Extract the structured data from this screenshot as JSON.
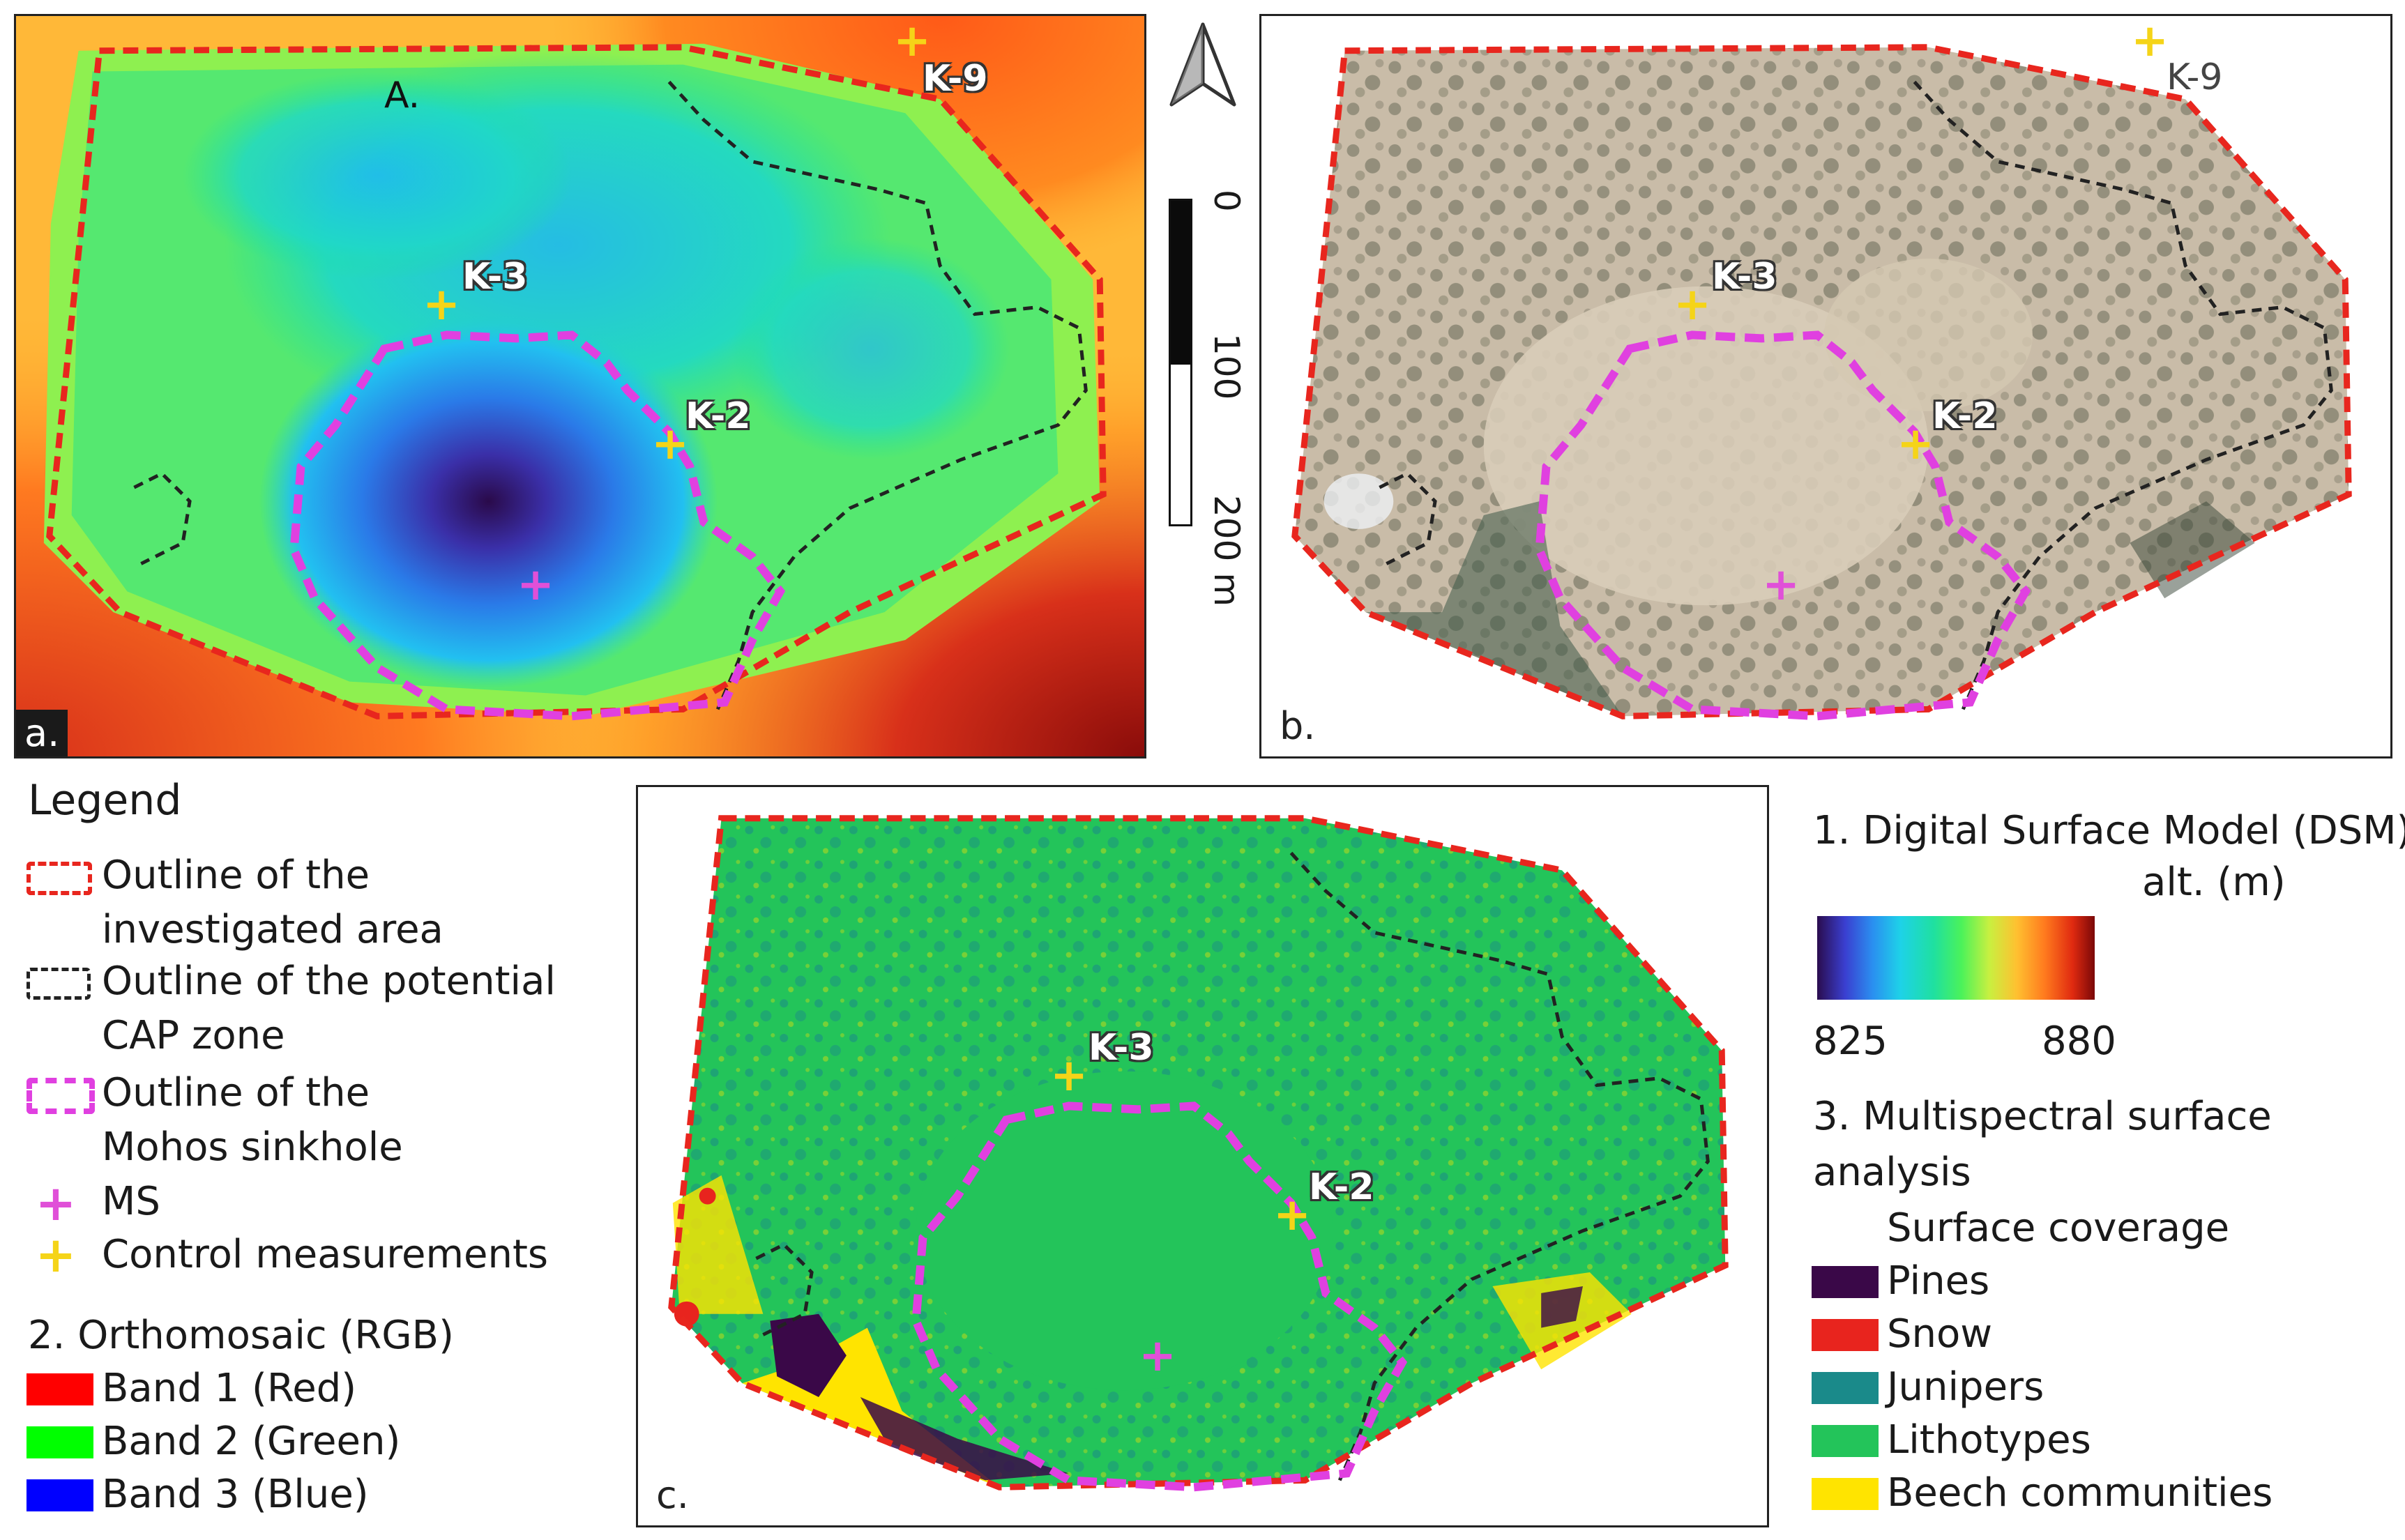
{
  "panels": {
    "a": {
      "corner": "a.",
      "title": "A."
    },
    "b": {
      "corner": "b."
    },
    "c": {
      "corner": "c."
    }
  },
  "points": {
    "k9": "K-9",
    "k3": "K-3",
    "k2": "K-2"
  },
  "scale": {
    "tick0": "0",
    "tick100": "100",
    "tick200": "200 m"
  },
  "legend": {
    "title": "Legend",
    "investigated_line1": "Outline of the",
    "investigated_line2": "investigated area",
    "cap_line1": "Outline of the potential",
    "cap_line2": "CAP zone",
    "mohos_line1": "Outline of the",
    "mohos_line2": "Mohos sinkhole",
    "ms": "MS",
    "control": "Control measurements",
    "ortho_title": "2. Orthomosaic (RGB)",
    "band1": "Band 1 (Red)",
    "band2": "Band 2 (Green)",
    "band3": "Band 3 (Blue)",
    "dsm_title": "1. Digital Surface Model (DSM)",
    "dsm_unit": "alt. (m)",
    "dsm_min": "825",
    "dsm_max": "880",
    "ms_title_line1": "3. Multispectral surface",
    "ms_title_line2": "analysis",
    "coverage_title": "Surface coverage",
    "pines": "Pines",
    "snow": "Snow",
    "junipers": "Junipers",
    "lithotypes": "Lithotypes",
    "beech": "Beech communities"
  },
  "colors": {
    "investigated": "#e8261e",
    "cap": "#222222",
    "mohos": "#e040e0",
    "ms_marker": "#e050d8",
    "control_marker": "#f5d418",
    "band1": "#ff0000",
    "band2": "#00ff00",
    "band3": "#0000ff",
    "pines": "#3a0848",
    "snow": "#e8241e",
    "junipers": "#1a8a8a",
    "lithotypes": "#23c45a",
    "beech": "#ffe400"
  },
  "icons": {
    "north_arrow": "north-arrow-icon"
  }
}
